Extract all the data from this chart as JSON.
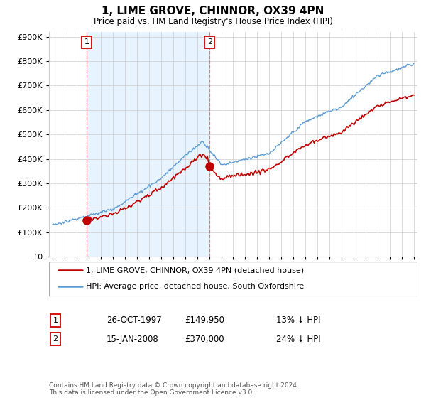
{
  "title": "1, LIME GROVE, CHINNOR, OX39 4PN",
  "subtitle": "Price paid vs. HM Land Registry's House Price Index (HPI)",
  "hpi_color": "#5b9bd5",
  "price_color": "#c00000",
  "marker_color": "#c00000",
  "shade_color": "#ddeeff",
  "background_color": "#ffffff",
  "grid_color": "#cccccc",
  "vline_color": "#e06060",
  "ylim": [
    0,
    920000
  ],
  "yticks": [
    0,
    100000,
    200000,
    300000,
    400000,
    500000,
    600000,
    700000,
    800000,
    900000
  ],
  "xlim_start": 1994.7,
  "xlim_end": 2025.3,
  "legend_label_price": "1, LIME GROVE, CHINNOR, OX39 4PN (detached house)",
  "legend_label_hpi": "HPI: Average price, detached house, South Oxfordshire",
  "sale1_label": "1",
  "sale1_date": "26-OCT-1997",
  "sale1_price": "£149,950",
  "sale1_hpi": "13% ↓ HPI",
  "sale1_year": 1997.82,
  "sale1_value": 149950,
  "sale2_label": "2",
  "sale2_date": "15-JAN-2008",
  "sale2_price": "£370,000",
  "sale2_hpi": "24% ↓ HPI",
  "sale2_year": 2008.04,
  "sale2_value": 370000,
  "footnote": "Contains HM Land Registry data © Crown copyright and database right 2024.\nThis data is licensed under the Open Government Licence v3.0."
}
